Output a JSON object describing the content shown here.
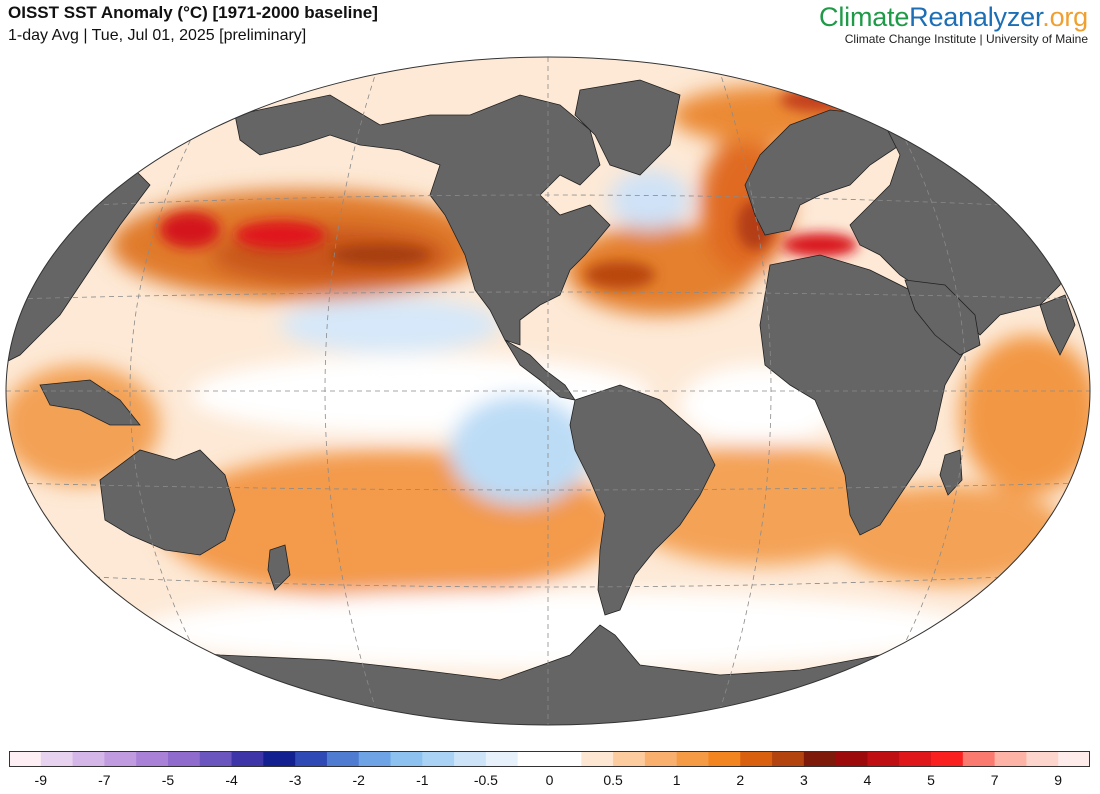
{
  "header": {
    "title": "OISST SST Anomaly (°C) [1971-2000 baseline]",
    "subtitle": "1-day Avg | Tue, Jul 01, 2025 [preliminary]"
  },
  "brand": {
    "name_part1": "Climate",
    "name_part2": "Reanalyzer",
    "name_part3": ".org",
    "affiliation": "Climate Change Institute | University of Maine"
  },
  "colors": {
    "land": "#656565",
    "ocean_neutral": "#ffffff",
    "warm_light": "#fdd7b5",
    "warm_mid": "#f59a45",
    "warm_strong": "#d9600f",
    "warm_extreme": "#e0171a",
    "cool_light": "#cde4f8",
    "cool_mid": "#8dc2f0",
    "cool_strong": "#2f49b5"
  },
  "legend": {
    "bins": [
      {
        "color": "#fdeff4",
        "label": "-9"
      },
      {
        "color": "#e7d3ef",
        "label": ""
      },
      {
        "color": "#d4b7e8",
        "label": "-7"
      },
      {
        "color": "#c09be0",
        "label": ""
      },
      {
        "color": "#a982d8",
        "label": "-5"
      },
      {
        "color": "#8e6bcc",
        "label": ""
      },
      {
        "color": "#6b56c0",
        "label": "-4"
      },
      {
        "color": "#3e35a8",
        "label": ""
      },
      {
        "color": "#13208f",
        "label": "-3"
      },
      {
        "color": "#2f49b5",
        "label": ""
      },
      {
        "color": "#4f7cd0",
        "label": "-2"
      },
      {
        "color": "#6ea3e6",
        "label": ""
      },
      {
        "color": "#8dc2f0",
        "label": "-1"
      },
      {
        "color": "#a9d2f5",
        "label": ""
      },
      {
        "color": "#cde4f8",
        "label": "-0.5"
      },
      {
        "color": "#e7f1fb",
        "label": ""
      },
      {
        "color": "#ffffff",
        "label": "0"
      },
      {
        "color": "#ffffff",
        "label": ""
      },
      {
        "color": "#fde7d2",
        "label": "0.5"
      },
      {
        "color": "#fccc9e",
        "label": ""
      },
      {
        "color": "#f9b06f",
        "label": "1"
      },
      {
        "color": "#f59a45",
        "label": ""
      },
      {
        "color": "#f2851f",
        "label": "2"
      },
      {
        "color": "#d9600f",
        "label": ""
      },
      {
        "color": "#b34410",
        "label": "3"
      },
      {
        "color": "#7d1a0a",
        "label": ""
      },
      {
        "color": "#9c0a0c",
        "label": "4"
      },
      {
        "color": "#c00f12",
        "label": ""
      },
      {
        "color": "#e0171a",
        "label": "5"
      },
      {
        "color": "#fa2020",
        "label": ""
      },
      {
        "color": "#fb7a70",
        "label": "7"
      },
      {
        "color": "#fdb4a6",
        "label": ""
      },
      {
        "color": "#fdd5cc",
        "label": "9"
      },
      {
        "color": "#fdecea",
        "label": ""
      }
    ]
  }
}
